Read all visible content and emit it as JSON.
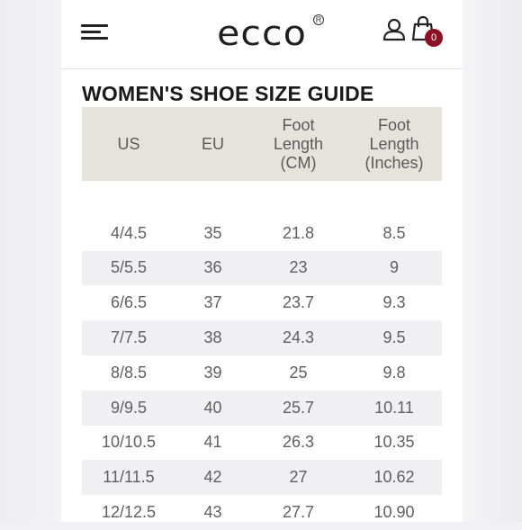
{
  "header": {
    "logo_text": "ecco",
    "logo_mark": "R",
    "cart_count": "0",
    "icons": [
      "hamburger-menu-icon",
      "user-icon",
      "shopping-bag-icon"
    ]
  },
  "title": "WOMEN'S SHOE SIZE GUIDE",
  "table": {
    "headers": [
      [
        "US"
      ],
      [
        "EU"
      ],
      [
        "Foot",
        "Length",
        "(CM)"
      ],
      [
        "Foot",
        "Length",
        "(Inches)"
      ]
    ],
    "rows": [
      [
        "4/4.5",
        "35",
        "21.8",
        "8.5"
      ],
      [
        "5/5.5",
        "36",
        "23",
        "9"
      ],
      [
        "6/6.5",
        "37",
        "23.7",
        "9.3"
      ],
      [
        "7/7.5",
        "38",
        "24.3",
        "9.5"
      ],
      [
        "8/8.5",
        "39",
        "25",
        "9.8"
      ],
      [
        "9/9.5",
        "40",
        "25.7",
        "10.11"
      ],
      [
        "10/10.5",
        "41",
        "26.3",
        "10.35"
      ],
      [
        "11/11.5",
        "42",
        "27",
        "10.62"
      ],
      [
        "12/12.5",
        "43",
        "27.7",
        "10.90"
      ]
    ]
  },
  "colors": {
    "header_bg": "#e6e2dc",
    "stripe_bg": "#f0f0f2",
    "badge_bg": "#8b1226",
    "text": "#5f5f5f"
  }
}
